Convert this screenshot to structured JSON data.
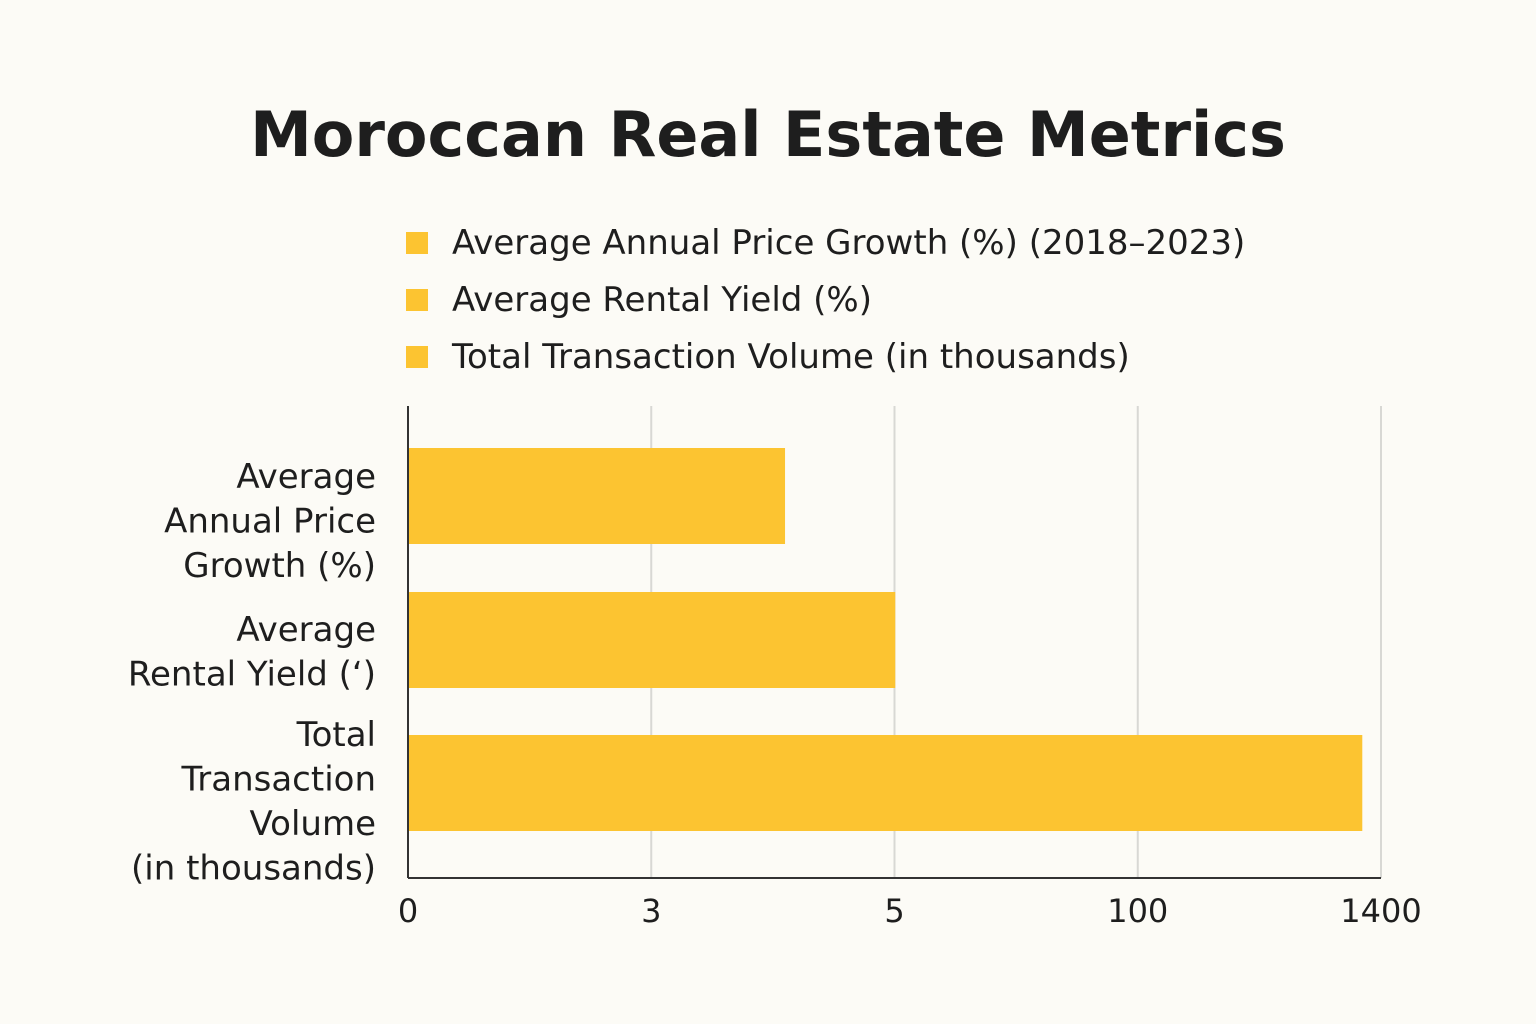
{
  "chart_data": {
    "type": "bar",
    "orientation": "horizontal",
    "title": "Moroccan Real Estate Metrics",
    "legend": [
      "Average Annual Price Growth (%) (2018–2023)",
      "Average Rental Yield (%)",
      "Total Transaction Volume (in thousands)"
    ],
    "categories": [
      [
        "Average",
        "Annual Price",
        "Growth (%)"
      ],
      [
        "Average",
        "Rental Yield (ʻ)"
      ],
      [
        "Total",
        "Transaction",
        "Volume",
        "(in thousands)"
      ]
    ],
    "x_ticks": [
      "0",
      "3",
      "5",
      "100",
      "1400"
    ],
    "tick_values": [
      0,
      3,
      5,
      100,
      1400
    ],
    "values": [
      4.1,
      5.3,
      1300
    ],
    "xlabel": "",
    "ylabel": "",
    "grid": true,
    "legend_position": "top"
  },
  "colors": {
    "bar": "#fcc431",
    "grid": "#d8d8d4",
    "axis": "#333333"
  }
}
